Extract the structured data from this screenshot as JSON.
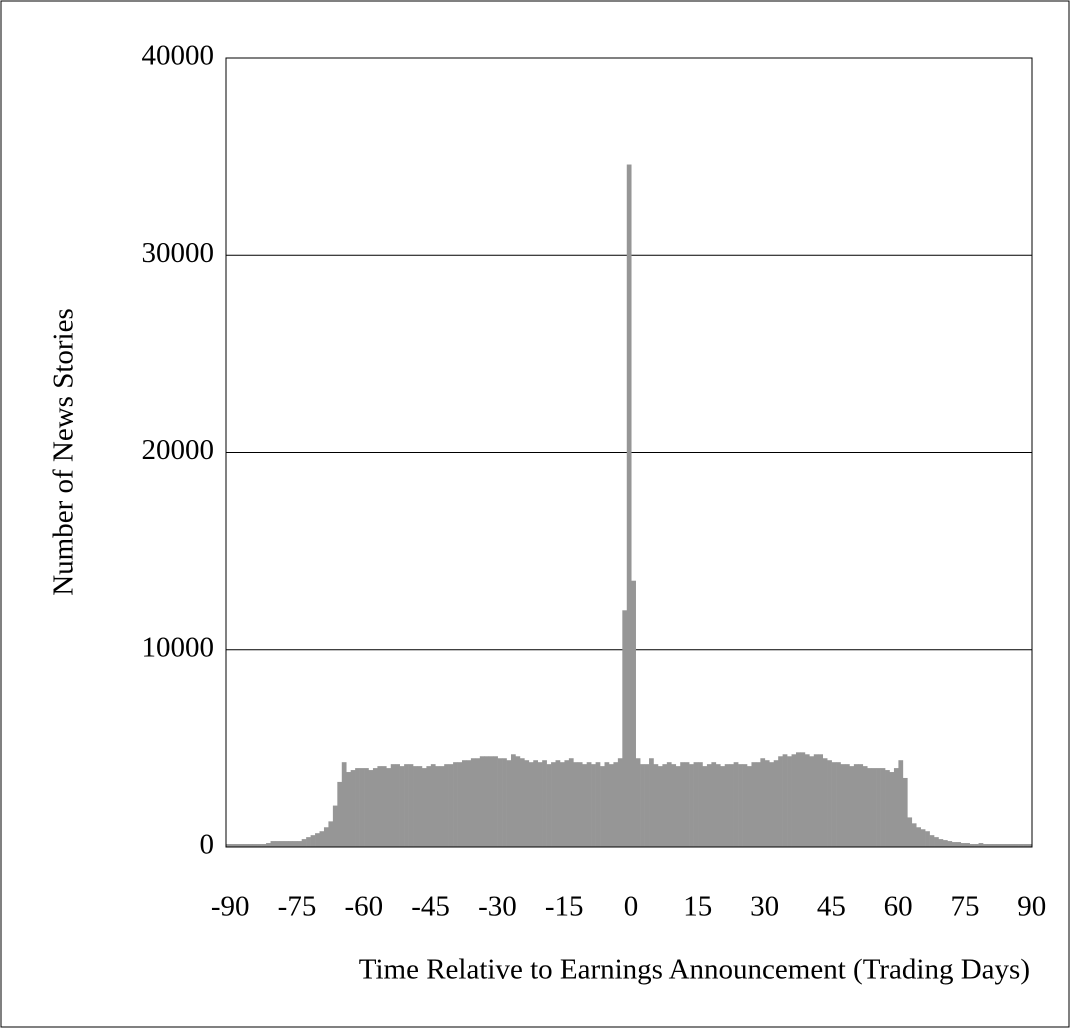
{
  "chart_data": {
    "type": "bar",
    "xlabel": "Time Relative to Earnings Announcement (Trading Days)",
    "ylabel": "Number of News Stories",
    "color": "#969696",
    "grid": true,
    "xlim": [
      -90.5,
      90.5
    ],
    "ylim": [
      0,
      40000
    ],
    "xticks": [
      -90,
      -75,
      -60,
      -45,
      -30,
      -15,
      0,
      15,
      30,
      45,
      60,
      75,
      90
    ],
    "yticks": [
      0,
      10000,
      20000,
      30000,
      40000
    ],
    "x": [
      -90,
      -89,
      -88,
      -87,
      -86,
      -85,
      -84,
      -83,
      -82,
      -81,
      -80,
      -79,
      -78,
      -77,
      -76,
      -75,
      -74,
      -73,
      -72,
      -71,
      -70,
      -69,
      -68,
      -67,
      -66,
      -65,
      -64,
      -63,
      -62,
      -61,
      -60,
      -59,
      -58,
      -57,
      -56,
      -55,
      -54,
      -53,
      -52,
      -51,
      -50,
      -49,
      -48,
      -47,
      -46,
      -45,
      -44,
      -43,
      -42,
      -41,
      -40,
      -39,
      -38,
      -37,
      -36,
      -35,
      -34,
      -33,
      -32,
      -31,
      -30,
      -29,
      -28,
      -27,
      -26,
      -25,
      -24,
      -23,
      -22,
      -21,
      -20,
      -19,
      -18,
      -17,
      -16,
      -15,
      -14,
      -13,
      -12,
      -11,
      -10,
      -9,
      -8,
      -7,
      -6,
      -5,
      -4,
      -3,
      -2,
      -1,
      0,
      1,
      2,
      3,
      4,
      5,
      6,
      7,
      8,
      9,
      10,
      11,
      12,
      13,
      14,
      15,
      16,
      17,
      18,
      19,
      20,
      21,
      22,
      23,
      24,
      25,
      26,
      27,
      28,
      29,
      30,
      31,
      32,
      33,
      34,
      35,
      36,
      37,
      38,
      39,
      40,
      41,
      42,
      43,
      44,
      45,
      46,
      47,
      48,
      49,
      50,
      51,
      52,
      53,
      54,
      55,
      56,
      57,
      58,
      59,
      60,
      61,
      62,
      63,
      64,
      65,
      66,
      67,
      68,
      69,
      70,
      71,
      72,
      73,
      74,
      75,
      76,
      77,
      78,
      79,
      80,
      81,
      82,
      83,
      84,
      85,
      86,
      87,
      88,
      89,
      90
    ],
    "values": [
      150,
      150,
      150,
      150,
      150,
      150,
      150,
      150,
      150,
      200,
      300,
      300,
      300,
      300,
      300,
      300,
      300,
      400,
      500,
      600,
      700,
      800,
      1000,
      1300,
      2100,
      3300,
      4300,
      3800,
      3900,
      4000,
      4000,
      4000,
      3900,
      4000,
      4100,
      4100,
      4000,
      4200,
      4200,
      4100,
      4200,
      4200,
      4100,
      4100,
      4000,
      4100,
      4200,
      4100,
      4100,
      4200,
      4200,
      4300,
      4300,
      4400,
      4400,
      4500,
      4500,
      4600,
      4600,
      4600,
      4600,
      4500,
      4500,
      4400,
      4700,
      4600,
      4500,
      4400,
      4300,
      4400,
      4300,
      4400,
      4200,
      4300,
      4400,
      4300,
      4400,
      4500,
      4300,
      4300,
      4200,
      4300,
      4200,
      4300,
      4100,
      4300,
      4200,
      4300,
      4500,
      12000,
      34600,
      13500,
      4500,
      4200,
      4200,
      4500,
      4200,
      4100,
      4200,
      4300,
      4200,
      4100,
      4300,
      4300,
      4200,
      4300,
      4300,
      4100,
      4200,
      4300,
      4200,
      4100,
      4200,
      4200,
      4300,
      4200,
      4200,
      4100,
      4300,
      4300,
      4500,
      4400,
      4300,
      4400,
      4600,
      4700,
      4600,
      4700,
      4800,
      4800,
      4700,
      4600,
      4700,
      4700,
      4500,
      4400,
      4300,
      4300,
      4200,
      4200,
      4100,
      4200,
      4200,
      4100,
      4000,
      4000,
      4000,
      4000,
      3900,
      3800,
      4000,
      4400,
      3500,
      1500,
      1200,
      1000,
      900,
      800,
      600,
      500,
      400,
      350,
      300,
      250,
      250,
      200,
      200,
      150,
      150,
      200,
      150,
      150,
      150,
      150,
      150,
      150,
      150,
      150,
      150,
      150,
      150
    ]
  }
}
